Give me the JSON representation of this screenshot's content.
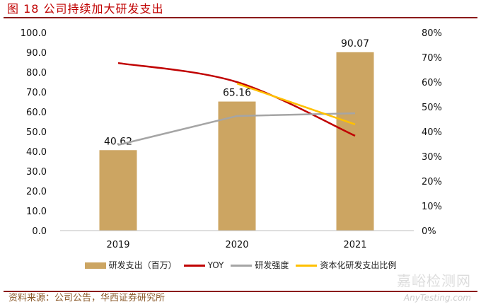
{
  "title": "图 18 公司持续加大研发支出",
  "source": "资料来源：公司公告，华西证券研究所",
  "watermark": {
    "cn": "嘉峪检测网",
    "en": "AnyTesting.com"
  },
  "chart_data": {
    "type": "bar+line",
    "categories": [
      "2019",
      "2020",
      "2021"
    ],
    "bar_series": {
      "name": "研发支出（百万）",
      "values": [
        40.62,
        65.16,
        90.07
      ],
      "labels": [
        "40.62",
        "65.16",
        "90.07"
      ],
      "color": "#cca562"
    },
    "line_series": [
      {
        "name": "YOY",
        "values": [
          67.7,
          60.0,
          38.3
        ],
        "color": "#c00000",
        "smooth": true
      },
      {
        "name": "研发强度",
        "values": [
          34.6,
          46.3,
          47.4
        ],
        "color": "#a5a5a5"
      },
      {
        "name": "资本化研发支出比例",
        "values": [
          null,
          59.4,
          42.9
        ],
        "color": "#ffc000"
      }
    ],
    "y_left": {
      "range": [
        0,
        100
      ],
      "ticks": [
        "0.0",
        "10.0",
        "20.0",
        "30.0",
        "40.0",
        "50.0",
        "60.0",
        "70.0",
        "80.0",
        "90.0",
        "100.0"
      ]
    },
    "y_right": {
      "range": [
        0,
        80
      ],
      "unit": "%",
      "ticks": [
        "0%",
        "10%",
        "20%",
        "30%",
        "40%",
        "50%",
        "60%",
        "70%",
        "80%"
      ]
    },
    "grid": false,
    "legend_position": "bottom"
  }
}
